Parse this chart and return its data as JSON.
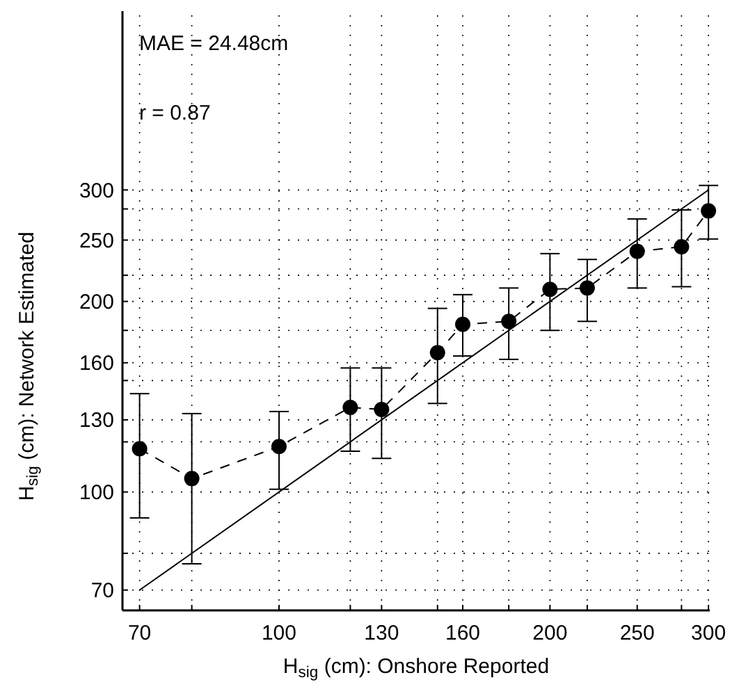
{
  "chart_data": {
    "type": "line",
    "xlabel": "H$_{sig}$ (cm): Onshore Reported",
    "ylabel": "H$_{sig}$ (cm): Network Estimated",
    "log": "xy",
    "grid": true,
    "xlim": [
      67,
      301
    ],
    "ylim": [
      65,
      575
    ],
    "xticks": [
      70,
      {
        "value": 80,
        "label": null
      },
      100,
      {
        "value": 120,
        "label": null
      },
      130,
      {
        "value": 150,
        "label": null
      },
      160,
      {
        "value": 180,
        "label": null
      },
      200,
      {
        "value": 220,
        "label": null
      },
      250,
      {
        "value": 280,
        "label": null
      },
      300
    ],
    "yticks": [
      70,
      {
        "value": 80,
        "label": null
      },
      100,
      {
        "value": 120,
        "label": null
      },
      130,
      {
        "value": 150,
        "label": null
      },
      160,
      {
        "value": 180,
        "label": null
      },
      200,
      {
        "value": 220,
        "label": null
      },
      250,
      {
        "value": 280,
        "label": null
      },
      300
    ],
    "annotations": [
      "MAE = 24.48cm",
      "r = 0.87"
    ],
    "series": [
      {
        "color": "#000000",
        "marker": "circle",
        "line_style": "dashed",
        "x": [
          70,
          80,
          100,
          120,
          130,
          150,
          160,
          180,
          200,
          220,
          250,
          280,
          300
        ],
        "values": [
          117,
          105,
          118,
          136,
          135,
          166,
          184,
          186,
          209,
          210,
          240,
          244,
          278
        ],
        "errors": [
          [
            91,
            143
          ],
          [
            77,
            133
          ],
          [
            101,
            134
          ],
          [
            116,
            157
          ],
          [
            113,
            157
          ],
          [
            138,
            195
          ],
          [
            164,
            205
          ],
          [
            162,
            210
          ],
          [
            180,
            238
          ],
          [
            186,
            233
          ],
          [
            210,
            270
          ],
          [
            211,
            279
          ],
          [
            251,
            305
          ]
        ]
      },
      {
        "color": "#000000",
        "marker": "none",
        "line_style": "solid",
        "x": [
          70,
          300
        ],
        "values": [
          70,
          300
        ]
      }
    ]
  }
}
